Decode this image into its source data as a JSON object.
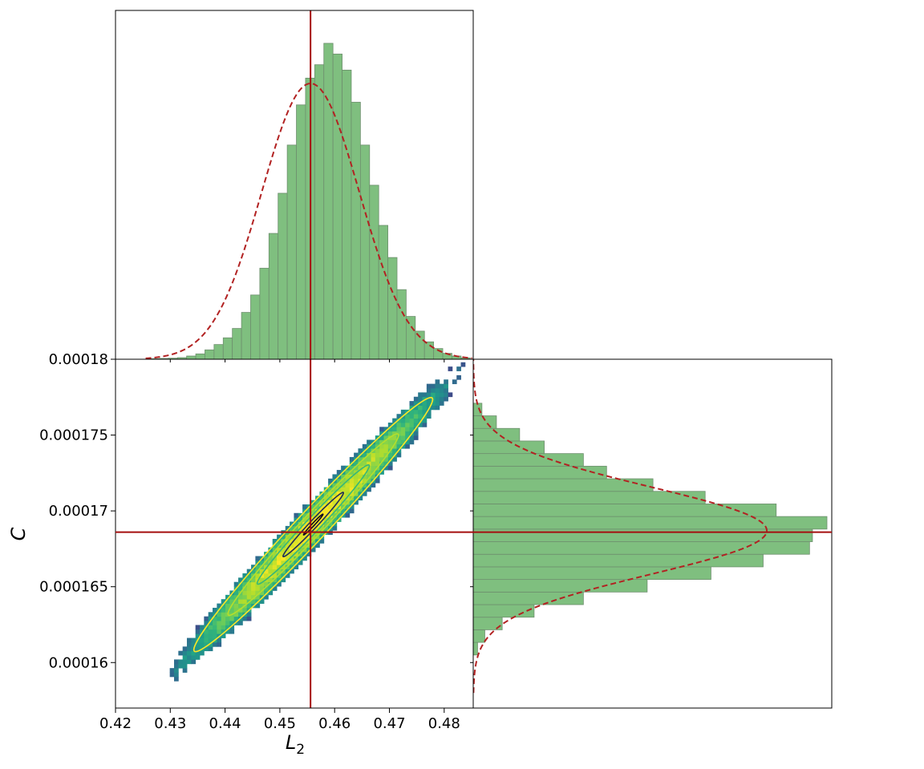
{
  "chart_data": {
    "type": "heatmap",
    "description_free": true,
    "xlabel": "L",
    "xlabel_subscript": "2",
    "ylabel": "C",
    "xlim": [
      0.42,
      0.4853
    ],
    "ylim": [
      0.000157,
      0.00018
    ],
    "x_ticks": [
      0.42,
      0.43,
      0.44,
      0.45,
      0.46,
      0.47,
      0.48
    ],
    "x_tick_labels": [
      "0.42",
      "0.43",
      "0.44",
      "0.45",
      "0.46",
      "0.47",
      "0.48"
    ],
    "y_ticks": [
      0.00016,
      0.000165,
      0.00017,
      0.000175,
      0.00018
    ],
    "y_tick_labels": [
      "0.00016",
      "0.000165",
      "0.00017",
      "0.000175",
      "0.00018"
    ],
    "reference_values": {
      "L2": 0.4556,
      "C": 0.0001686
    },
    "joint": {
      "kind": "2d-histogram",
      "colormap": "viridis",
      "correlation": 0.985,
      "mean": {
        "L2": 0.4561,
        "C": 0.0001691
      },
      "sd": {
        "L2": 0.0089,
        "C": 3.42e-06
      },
      "extent": {
        "L2": [
          0.426,
          0.4846
        ],
        "C": [
          0.0001585,
          0.0001798
        ]
      },
      "contour_colors": [
        "#fde725",
        "#b5de2b",
        "#35b779",
        "#1f2f5a",
        "#0d0821"
      ]
    },
    "marginal_top": {
      "variable": "L2",
      "bin_edges_start": 0.4263,
      "bin_width": 0.00167,
      "counts": [
        2,
        3,
        4,
        6,
        12,
        20,
        35,
        55,
        80,
        115,
        175,
        240,
        340,
        470,
        620,
        800,
        950,
        1050,
        1100,
        1180,
        1140,
        1080,
        960,
        800,
        650,
        500,
        380,
        260,
        160,
        105,
        65,
        40,
        22,
        12,
        5
      ],
      "fill_color": "#7fbf7f",
      "edge_color": "#6e8f6e",
      "normal_fit": {
        "mean": 0.4556,
        "sd": 0.0089,
        "peak_fraction_of_max": 0.873,
        "color": "#b22222",
        "style": "dashed"
      }
    },
    "marginal_right": {
      "variable": "C",
      "bin_edges_start": 0.0001605,
      "bin_width": 8.3e-07,
      "counts": [
        15,
        40,
        100,
        210,
        380,
        600,
        820,
        1000,
        1160,
        1170,
        1220,
        1045,
        800,
        620,
        460,
        380,
        245,
        160,
        80,
        30
      ],
      "fill_color": "#7fbf7f",
      "edge_color": "#6e8f6e",
      "normal_fit": {
        "mean": 0.0001687,
        "sd": 2.87e-06,
        "peak_fraction_of_max": 0.83,
        "color": "#b22222",
        "style": "dashed"
      }
    },
    "reference_line_color": "#a50f0f",
    "grid": false,
    "legend": "none"
  }
}
